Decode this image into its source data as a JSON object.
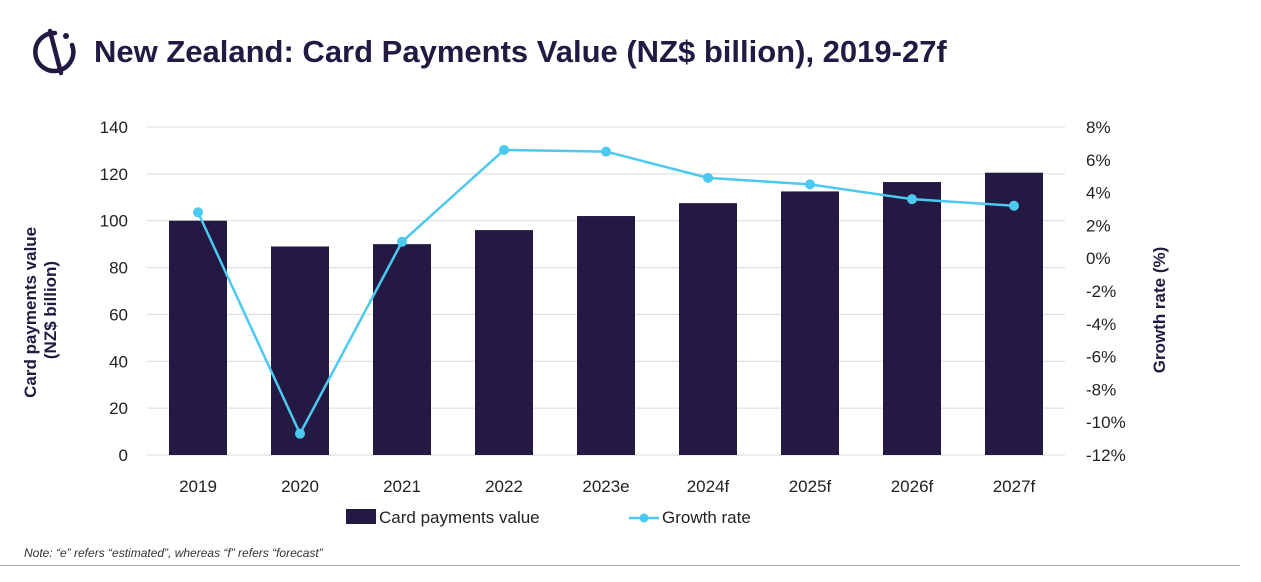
{
  "header": {
    "title": "New Zealand: Card Payments Value (NZ$ billion), 2019-27f",
    "logo_icon": "brand-logo-icon"
  },
  "note": "Note: “e” refers “estimated”, whereas “f” refers “forecast”",
  "colors": {
    "bar": "#231942",
    "line": "#4cc9f0",
    "grid": "#d9d9d9",
    "title": "#231942"
  },
  "chart_data": {
    "type": "bar",
    "title": "New Zealand: Card Payments Value (NZ$ billion), 2019-27f",
    "categories": [
      "2019",
      "2020",
      "2021",
      "2022",
      "2023e",
      "2024f",
      "2025f",
      "2026f",
      "2027f"
    ],
    "series": [
      {
        "name": "Card payments value",
        "type": "bar",
        "axis": "left",
        "values": [
          100,
          89,
          90,
          96,
          102,
          107.5,
          112.5,
          116.5,
          120.5
        ]
      },
      {
        "name": "Growth rate",
        "type": "line",
        "axis": "right",
        "values": [
          2.8,
          -10.7,
          1.0,
          6.6,
          6.5,
          4.9,
          4.5,
          3.6,
          3.2
        ]
      }
    ],
    "left_axis": {
      "label_line1": "Card payments value",
      "label_line2": "(NZ$ billion)",
      "ylim": [
        0,
        140
      ],
      "ticks": [
        "0",
        "20",
        "40",
        "60",
        "80",
        "100",
        "120",
        "140"
      ]
    },
    "right_axis": {
      "label": "Growth rate (%)",
      "ylim": [
        -12,
        8
      ],
      "ticks": [
        "-12%",
        "-10%",
        "-8%",
        "-6%",
        "-4%",
        "-2%",
        "0%",
        "2%",
        "4%",
        "6%",
        "8%"
      ]
    },
    "grid": true,
    "legend_position": "bottom"
  }
}
